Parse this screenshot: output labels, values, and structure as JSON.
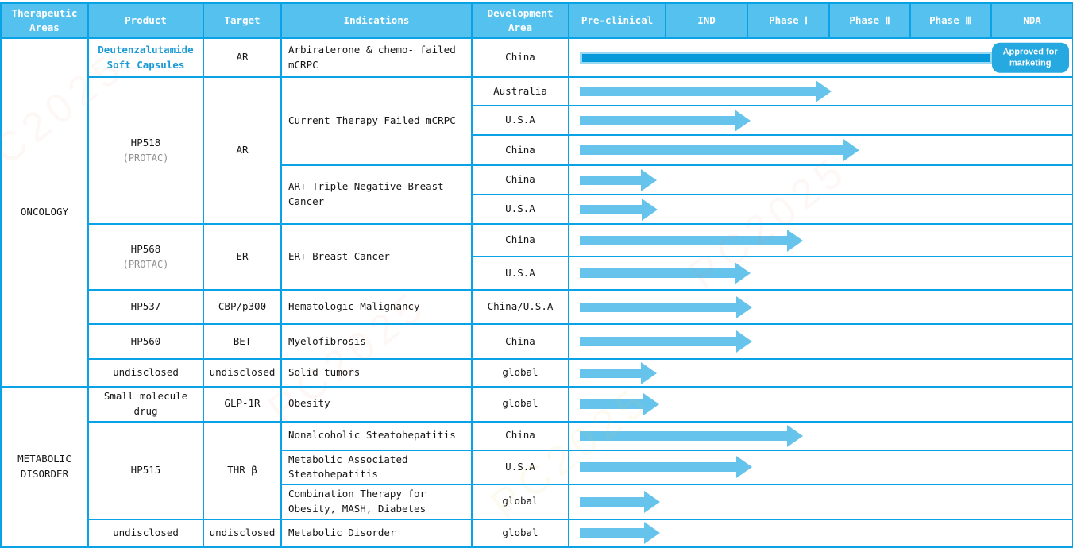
{
  "colors": {
    "border": "#0aa2e6",
    "header-bg": "#55c1ee",
    "arrow": "#66c4ec",
    "bar": "#0899da",
    "bar-frame": "#97d8f3",
    "badge": "#25a9e0",
    "link": "#1c9ad6"
  },
  "watermark": {
    "text": "PC2025"
  },
  "table": {
    "headers": [
      "Therapeutic Areas",
      "Product",
      "Target",
      "Indications",
      "Development Area"
    ],
    "phases": [
      "Pre-clinical",
      "IND",
      "Phase Ⅰ",
      "Phase Ⅱ",
      "Phase Ⅲ",
      "NDA"
    ]
  },
  "sections": [
    {
      "label": "ONCOLOGY"
    },
    {
      "label": "METABOLIC DISORDER"
    }
  ],
  "rows": [
    {
      "product": {
        "name": "Deutenzalutamide Soft Capsules"
      },
      "target": "AR",
      "indication": "Arbiraterone & chemo- failed mCRPC",
      "area": "China",
      "progress": {
        "type": "bar",
        "width_pct": 82.1,
        "badge": "Approved for marketing",
        "stage": "Approved"
      }
    },
    {
      "product": {
        "name": "HP518",
        "sub": "(PROTAC)"
      },
      "target": "AR",
      "indication": "Current Therapy Failed mCRPC",
      "area": "Australia",
      "progress": {
        "type": "arrow",
        "width_pct": 50.2,
        "stage": "Phase Ⅱ"
      }
    },
    {
      "area": "U.S.A",
      "progress": {
        "type": "arrow",
        "width_pct": 34.0,
        "stage": "Phase Ⅰ"
      }
    },
    {
      "area": "China",
      "progress": {
        "type": "arrow",
        "width_pct": 55.7,
        "stage": "Phase Ⅱ"
      }
    },
    {
      "indication": "AR+ Triple-Negative Breast Cancer",
      "area": "China",
      "progress": {
        "type": "arrow",
        "width_pct": 15.3,
        "stage": "IND"
      }
    },
    {
      "area": "U.S.A",
      "progress": {
        "type": "arrow",
        "width_pct": 15.6,
        "stage": "IND"
      }
    },
    {
      "product": {
        "name": "HP568",
        "sub": "(PROTAC)"
      },
      "target": "ER",
      "indication": "ER+ Breast Cancer",
      "area": "China",
      "progress": {
        "type": "arrow",
        "width_pct": 44.5,
        "stage": "Phase Ⅰ"
      }
    },
    {
      "area": "U.S.A",
      "progress": {
        "type": "arrow",
        "width_pct": 34.0,
        "stage": "Phase Ⅰ"
      }
    },
    {
      "product": {
        "name": "HP537"
      },
      "target": "CBP/p300",
      "indication": "Hematologic Malignancy",
      "area": "China/U.S.A",
      "progress": {
        "type": "arrow",
        "width_pct": 34.3,
        "stage": "Phase Ⅰ"
      }
    },
    {
      "product": {
        "name": "HP560"
      },
      "target": "BET",
      "indication": "Myelofibrosis",
      "area": "China",
      "progress": {
        "type": "arrow",
        "width_pct": 34.3,
        "stage": "Phase Ⅰ"
      }
    },
    {
      "product": {
        "name": "undisclosed"
      },
      "target": "undisclosed",
      "indication": "Solid tumors",
      "area": "global",
      "progress": {
        "type": "arrow",
        "width_pct": 15.4,
        "stage": "IND"
      }
    },
    {
      "product": {
        "name": "Small molecule drug"
      },
      "target": "GLP-1R",
      "indication": "Obesity",
      "area": "global",
      "progress": {
        "type": "arrow",
        "width_pct": 15.9,
        "stage": "IND"
      }
    },
    {
      "product": {
        "name": "HP515"
      },
      "target": "THR β",
      "indication": "Nonalcoholic Steatohepatitis",
      "area": "China",
      "progress": {
        "type": "arrow",
        "width_pct": 44.5,
        "stage": "Phase Ⅰ"
      }
    },
    {
      "indication": "Metabolic Associated Steatohepatitis",
      "area": "U.S.A",
      "progress": {
        "type": "arrow",
        "width_pct": 34.3,
        "stage": "Phase Ⅰ"
      }
    },
    {
      "indication": "Combination Therapy for Obesity, MASH, Diabetes",
      "area": "global",
      "progress": {
        "type": "arrow",
        "width_pct": 16.0,
        "stage": "IND"
      }
    },
    {
      "product": {
        "name": "undisclosed"
      },
      "target": "undisclosed",
      "indication": "Metabolic Disorder",
      "area": "global",
      "progress": {
        "type": "arrow",
        "width_pct": 16.0,
        "stage": "IND"
      }
    }
  ]
}
